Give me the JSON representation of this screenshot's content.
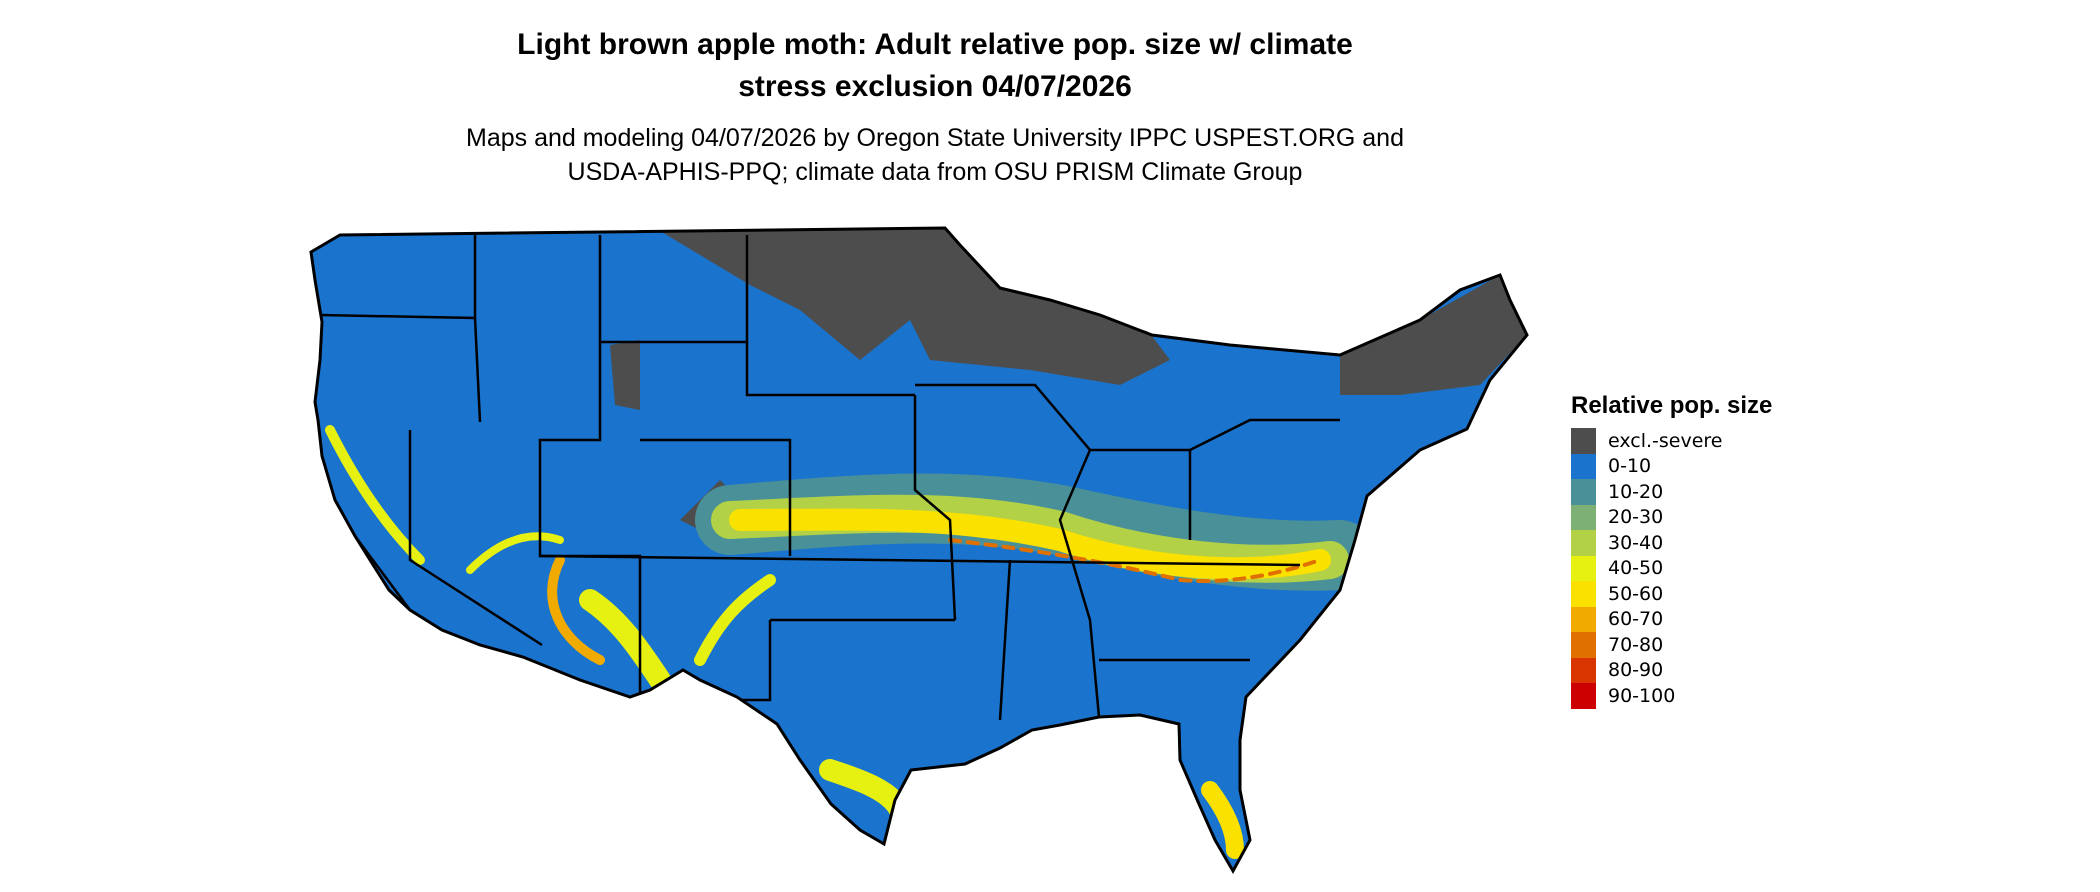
{
  "title": {
    "line1": "Light brown apple moth: Adult relative pop. size w/ climate",
    "line2": "stress exclusion 04/07/2026"
  },
  "subtitle": {
    "line1": "Maps and modeling 04/07/2026 by Oregon State University IPPC USPEST.ORG and",
    "line2": "USDA-APHIS-PPQ; climate data from OSU PRISM Climate Group"
  },
  "map": {
    "region": "Contiguous United States",
    "colors": {
      "excluded": "#4d4d4d",
      "low": "#1a73cc",
      "band_mid": "#4a9098",
      "band_high": "#e6f011",
      "band_peak": "#f5e000",
      "hot": "#e07000",
      "border": "#000000"
    }
  },
  "legend": {
    "title": "Relative pop. size",
    "items": [
      {
        "label": "excl.-severe",
        "color": "#4d4d4d"
      },
      {
        "label": "0-10",
        "color": "#1a73cc"
      },
      {
        "label": "10-20",
        "color": "#4a9098"
      },
      {
        "label": "20-30",
        "color": "#7db074"
      },
      {
        "label": "30-40",
        "color": "#b3d147"
      },
      {
        "label": "40-50",
        "color": "#e6f011"
      },
      {
        "label": "50-60",
        "color": "#fae100"
      },
      {
        "label": "60-70",
        "color": "#f0aa00"
      },
      {
        "label": "70-80",
        "color": "#e07000"
      },
      {
        "label": "80-90",
        "color": "#d93500"
      },
      {
        "label": "90-100",
        "color": "#cc0000"
      }
    ]
  }
}
